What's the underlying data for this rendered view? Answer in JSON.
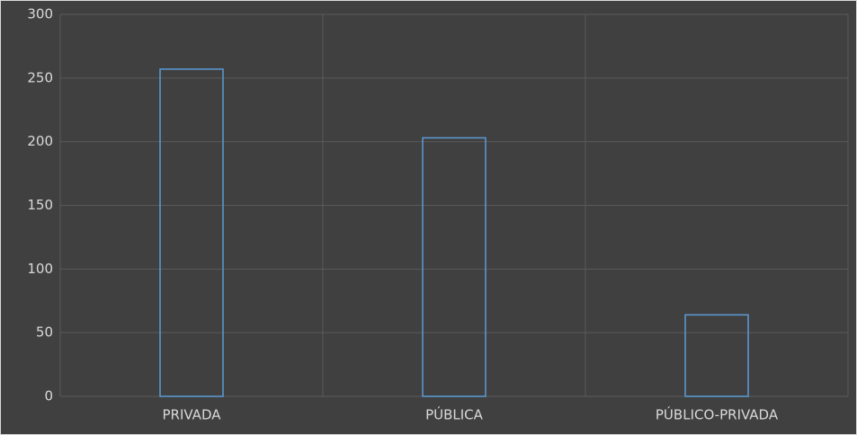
{
  "chart_data": {
    "type": "bar",
    "categories": [
      "PRIVADA",
      "PÚBLICA",
      "PÚBLICO-PRIVADA"
    ],
    "values": [
      257,
      203,
      64
    ],
    "color": "#5b9bd5",
    "ylim": [
      0,
      300
    ],
    "yticks": [
      0,
      50,
      100,
      150,
      200,
      250,
      300
    ],
    "grid": true
  }
}
